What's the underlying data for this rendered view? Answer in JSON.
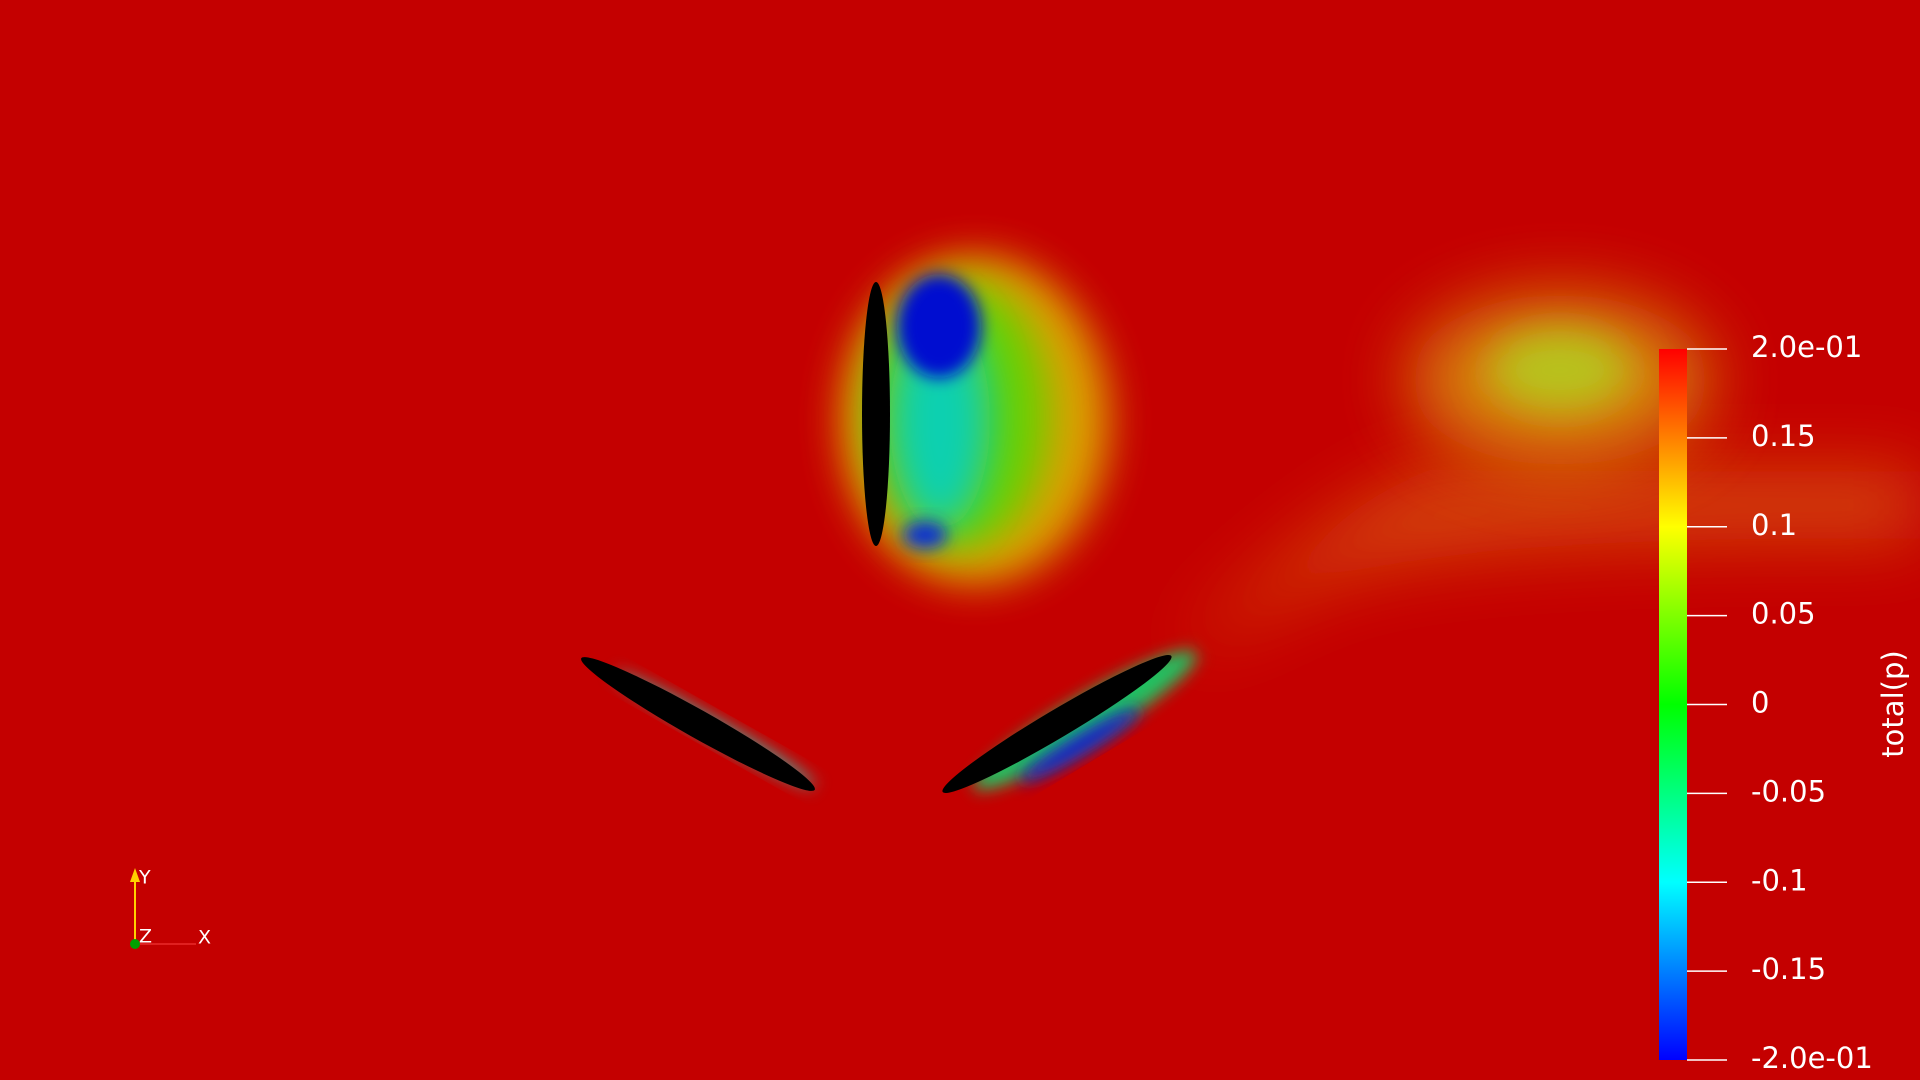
{
  "colorbar": {
    "title": "total(p)",
    "range": [
      -0.2,
      0.2
    ],
    "ticks": [
      {
        "value": 0.2,
        "label": "2.0e-01"
      },
      0.15,
      0.1,
      0.05,
      0,
      -0.05,
      -0.1,
      -0.15,
      {
        "value": -0.2,
        "label": "-2.0e-01"
      }
    ]
  },
  "axes": {
    "y": "Y",
    "z": "Z",
    "x": "X"
  }
}
